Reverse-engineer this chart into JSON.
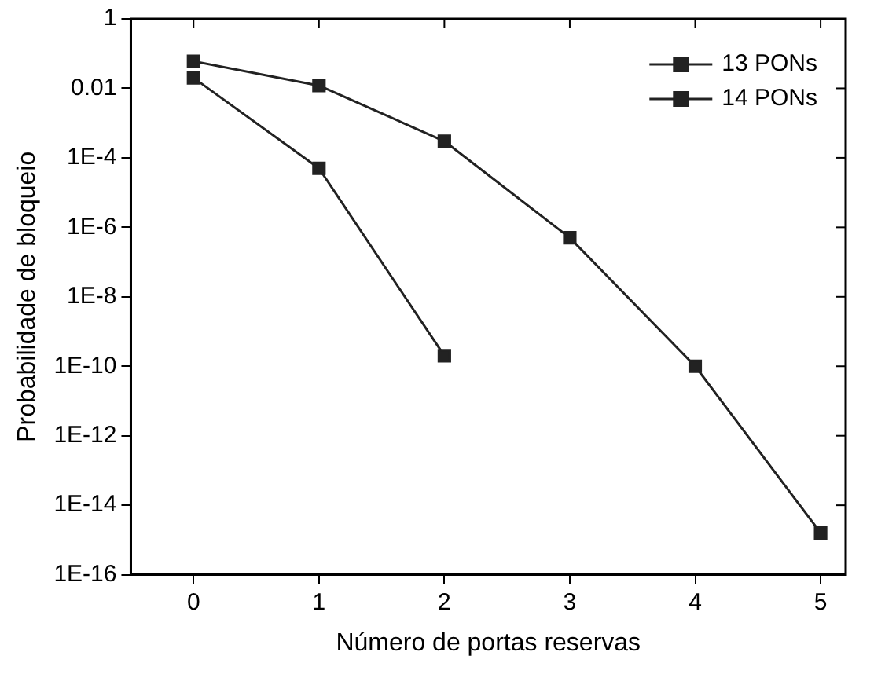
{
  "chart_data": {
    "type": "line",
    "xlabel": "Número de portas reservas",
    "ylabel": "Probabilidade de bloqueio",
    "log": "y",
    "grid": false,
    "legend": "top right",
    "marker": "square",
    "line_style": "solid",
    "xlim": [
      -0.5,
      5.2
    ],
    "xticks": [
      0,
      1,
      2,
      3,
      4,
      5
    ],
    "ylim": [
      1e-16,
      1
    ],
    "yticks": [
      1,
      0.01,
      {
        "value": 0.0001,
        "label": "1E-4"
      },
      {
        "value": 1e-06,
        "label": "1E-6"
      },
      {
        "value": 1e-08,
        "label": "1E-8"
      },
      {
        "value": 1e-10,
        "label": "1E-10"
      },
      {
        "value": 1e-12,
        "label": "1E-12"
      },
      {
        "value": 1e-14,
        "label": "1E-14"
      },
      {
        "value": 1e-16,
        "label": "1E-16"
      }
    ],
    "series": [
      {
        "name": "13 PONs",
        "color": "#222222",
        "x": [
          0,
          1,
          2,
          3,
          4,
          5
        ],
        "values": [
          0.06,
          0.012,
          0.0003,
          5e-07,
          1e-10,
          1.6e-15
        ]
      },
      {
        "name": "14 PONs",
        "color": "#222222",
        "x": [
          0,
          1,
          2
        ],
        "values": [
          0.02,
          5e-05,
          2e-10
        ]
      }
    ]
  }
}
